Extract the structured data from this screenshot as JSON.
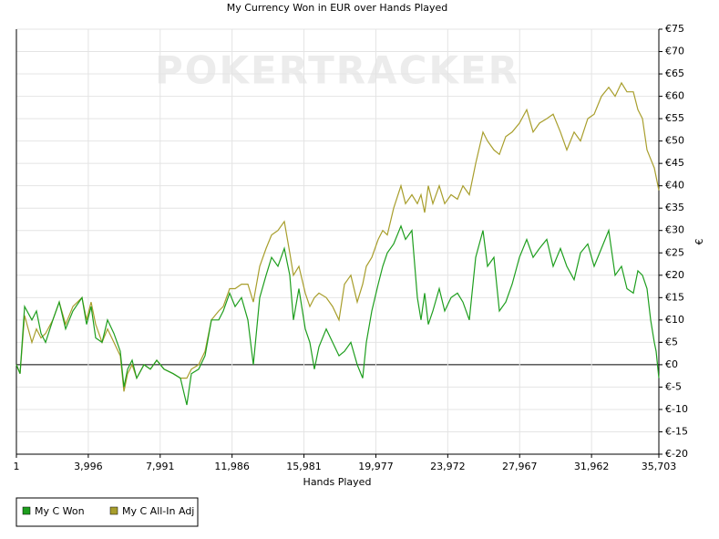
{
  "chart_data": {
    "type": "line",
    "title": "My Currency Won in EUR over Hands Played",
    "watermark": "POKERTRACKER",
    "x_label": "Hands Played",
    "y_label": "€",
    "xlim": [
      1,
      35703
    ],
    "ylim": [
      -20,
      75
    ],
    "grid": true,
    "legend": "bottom-left",
    "xticks": [
      1,
      {
        "value": 3996,
        "label": "3,996"
      },
      {
        "value": 7991,
        "label": "7,991"
      },
      {
        "value": 11986,
        "label": "11,986"
      },
      {
        "value": 15981,
        "label": "15,981"
      },
      {
        "value": 19977,
        "label": "19,977"
      },
      {
        "value": 23972,
        "label": "23,972"
      },
      {
        "value": 27967,
        "label": "27,967"
      },
      {
        "value": 31962,
        "label": "31,962"
      },
      {
        "value": 35703,
        "label": "35,703"
      }
    ],
    "yticks": [
      {
        "value": 75,
        "label": "€75"
      },
      {
        "value": 70,
        "label": "€70"
      },
      {
        "value": 65,
        "label": "€65"
      },
      {
        "value": 60,
        "label": "€60"
      },
      {
        "value": 55,
        "label": "€55"
      },
      {
        "value": 50,
        "label": "€50"
      },
      {
        "value": 45,
        "label": "€45"
      },
      {
        "value": 40,
        "label": "€40"
      },
      {
        "value": 35,
        "label": "€35"
      },
      {
        "value": 30,
        "label": "€30"
      },
      {
        "value": 25,
        "label": "€25"
      },
      {
        "value": 20,
        "label": "€20"
      },
      {
        "value": 15,
        "label": "€15"
      },
      {
        "value": 10,
        "label": "€10"
      },
      {
        "value": 5,
        "label": "€5"
      },
      {
        "value": 0,
        "label": "€0"
      },
      {
        "value": -5,
        "label": "€-5"
      },
      {
        "value": -10,
        "label": "€-10"
      },
      {
        "value": -15,
        "label": "€-15"
      },
      {
        "value": -20,
        "label": "€-20"
      }
    ],
    "x": [
      1,
      204,
      457,
      862,
      1115,
      1368,
      1622,
      2027,
      2381,
      2736,
      3141,
      3647,
      3900,
      4154,
      4407,
      4761,
      5065,
      5420,
      5774,
      5977,
      6179,
      6433,
      6686,
      7091,
      7446,
      7800,
      8205,
      8712,
      9117,
      9471,
      9724,
      10130,
      10484,
      10838,
      11243,
      11496,
      11851,
      12155,
      12509,
      12864,
      13168,
      13522,
      13877,
      14181,
      14535,
      14890,
      15193,
      15396,
      15700,
      16054,
      16307,
      16561,
      16814,
      17219,
      17574,
      17928,
      18232,
      18586,
      18941,
      19245,
      19447,
      19751,
      20106,
      20359,
      20612,
      20966,
      21372,
      21625,
      21979,
      22283,
      22486,
      22688,
      22891,
      23144,
      23499,
      23802,
      24157,
      24511,
      24815,
      25169,
      25524,
      25929,
      26182,
      26537,
      26841,
      27195,
      27550,
      27955,
      28360,
      28714,
      29069,
      29474,
      29828,
      30233,
      30588,
      30993,
      31347,
      31752,
      32107,
      32512,
      32917,
      33272,
      33626,
      33930,
      34284,
      34538,
      34791,
      35044,
      35247,
      35450,
      35551,
      35703
    ],
    "series": [
      {
        "name": "My C Won",
        "color": "#1e9e1e",
        "values": [
          0,
          -2,
          13,
          10,
          12,
          7,
          5,
          10,
          14,
          8,
          12,
          15,
          9,
          13,
          6,
          5,
          10,
          7,
          3,
          -5,
          -1,
          1,
          -3,
          0,
          -1,
          1,
          -1,
          -2,
          -3,
          -9,
          -2,
          -1,
          2,
          10,
          10,
          12,
          16,
          13,
          15,
          10,
          0,
          15,
          20,
          24,
          22,
          26,
          20,
          10,
          17,
          8,
          5,
          -1,
          4,
          8,
          5,
          2,
          3,
          5,
          0,
          -3,
          5,
          12,
          18,
          22,
          25,
          27,
          31,
          28,
          30,
          15,
          10,
          16,
          9,
          12,
          17,
          12,
          15,
          16,
          14,
          10,
          24,
          30,
          22,
          24,
          12,
          14,
          18,
          24,
          28,
          24,
          26,
          28,
          22,
          26,
          22,
          19,
          25,
          27,
          22,
          26,
          30,
          20,
          22,
          17,
          16,
          21,
          20,
          17,
          10,
          5,
          3,
          -3
        ]
      },
      {
        "name": "My C All-In Adj",
        "color": "#a89e2c",
        "values": [
          0,
          -2,
          11,
          5,
          8,
          6,
          7,
          10,
          14,
          9,
          13,
          15,
          10,
          14,
          9,
          5,
          8,
          5,
          2,
          -6,
          -2,
          0,
          -3,
          0,
          -1,
          1,
          -1,
          -2,
          -3,
          -3,
          -1,
          0,
          3,
          10,
          12,
          13,
          17,
          17,
          18,
          18,
          14,
          22,
          26,
          29,
          30,
          32,
          25,
          20,
          22,
          16,
          13,
          15,
          16,
          15,
          13,
          10,
          18,
          20,
          14,
          18,
          22,
          24,
          28,
          30,
          29,
          35,
          40,
          36,
          38,
          36,
          38,
          34,
          40,
          36,
          40,
          36,
          38,
          37,
          40,
          38,
          45,
          52,
          50,
          48,
          47,
          51,
          52,
          54,
          57,
          52,
          54,
          55,
          56,
          52,
          48,
          52,
          50,
          55,
          56,
          60,
          62,
          60,
          63,
          61,
          61,
          57,
          55,
          48,
          46,
          44,
          42,
          39
        ]
      }
    ]
  }
}
